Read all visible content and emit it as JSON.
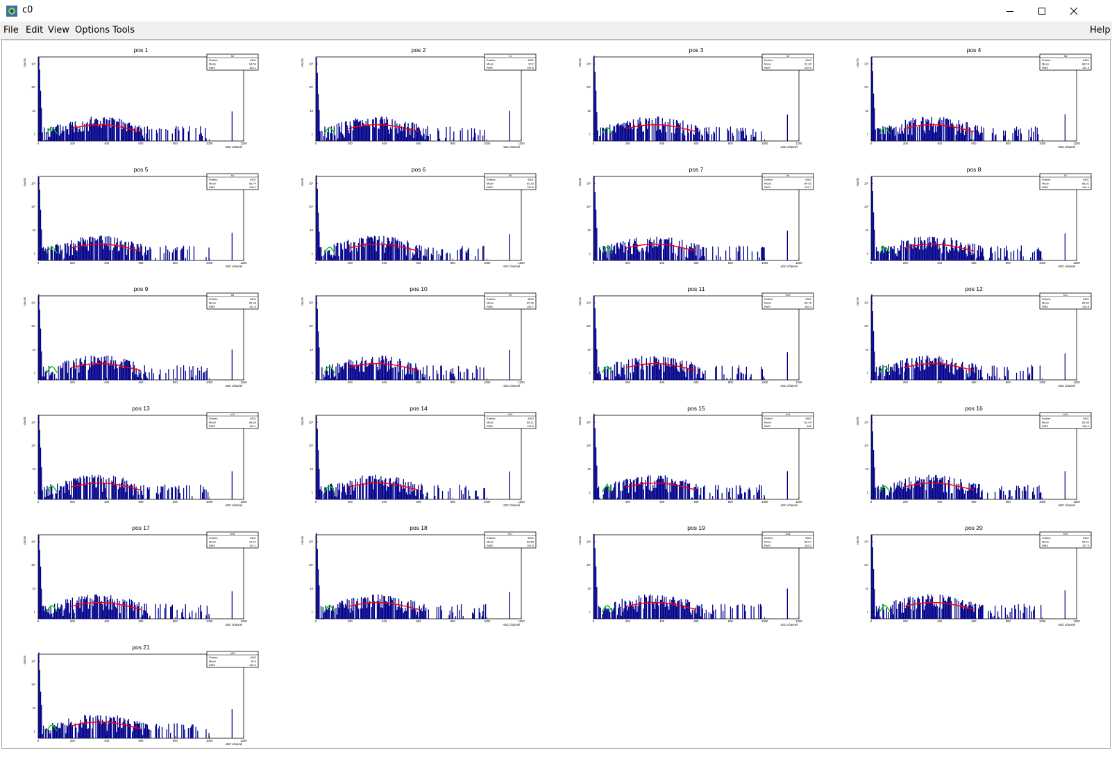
{
  "window": {
    "title": "c0"
  },
  "menubar": {
    "items": [
      {
        "label": "File",
        "name": "file"
      },
      {
        "label": "Edit",
        "name": "edit"
      },
      {
        "label": "View",
        "name": "view"
      },
      {
        "label": "Options",
        "name": "options"
      },
      {
        "label": "Tools",
        "name": "tools"
      }
    ],
    "help": "Help"
  },
  "axis": {
    "xlabel": "ADC channel",
    "ylabel": "counts",
    "xticks": [
      "0",
      "200",
      "400",
      "600",
      "800",
      "1000",
      "1200"
    ],
    "yticks": [
      "1",
      "10",
      "10²",
      "10³"
    ]
  },
  "stats_labels": {
    "entries": "Entries",
    "mean": "Mean",
    "rms": "RMS"
  },
  "colors": {
    "histogram": "#00008b",
    "fit_main": "#ff0000",
    "fit_low": "#00cc00"
  },
  "chart_data": [
    {
      "type": "bar",
      "title": "pos 1",
      "stats": {
        "name": "h0",
        "entries": "4501",
        "mean": "84.59",
        "rms": "153.1"
      }
    },
    {
      "type": "bar",
      "title": "pos 2",
      "stats": {
        "name": "h1",
        "entries": "4501",
        "mean": "90.2",
        "rms": "157.6"
      }
    },
    {
      "type": "bar",
      "title": "pos 3",
      "stats": {
        "name": "h2",
        "entries": "4502",
        "mean": "91.62",
        "rms": "153.5"
      }
    },
    {
      "type": "bar",
      "title": "pos 4",
      "stats": {
        "name": "h3",
        "entries": "4501",
        "mean": "88.19",
        "rms": "151.3"
      }
    },
    {
      "type": "bar",
      "title": "pos 5",
      "stats": {
        "name": "h4",
        "entries": "4501",
        "mean": "86.74",
        "rms": "158.4"
      }
    },
    {
      "type": "bar",
      "title": "pos 6",
      "stats": {
        "name": "h5",
        "entries": "4501",
        "mean": "85.18",
        "rms": "153.8"
      }
    },
    {
      "type": "bar",
      "title": "pos 7",
      "stats": {
        "name": "h6",
        "entries": "4501",
        "mean": "84.63",
        "rms": "157.7"
      }
    },
    {
      "type": "bar",
      "title": "pos 8",
      "stats": {
        "name": "h7",
        "entries": "4501",
        "mean": "88.31",
        "rms": "154.4"
      }
    },
    {
      "type": "bar",
      "title": "pos 9",
      "stats": {
        "name": "h8",
        "entries": "4501",
        "mean": "85.48",
        "rms": "151.9"
      }
    },
    {
      "type": "bar",
      "title": "pos 10",
      "stats": {
        "name": "h9",
        "entries": "4502",
        "mean": "85.26",
        "rms": "150.7"
      }
    },
    {
      "type": "bar",
      "title": "pos 11",
      "stats": {
        "name": "h10",
        "entries": "4501",
        "mean": "89.78",
        "rms": "152.4"
      }
    },
    {
      "type": "bar",
      "title": "pos 12",
      "stats": {
        "name": "h11",
        "entries": "4501",
        "mean": "85.82",
        "rms": "153.4"
      }
    },
    {
      "type": "bar",
      "title": "pos 13",
      "stats": {
        "name": "h12",
        "entries": "4501",
        "mean": "88.69",
        "rms": "146.1"
      }
    },
    {
      "type": "bar",
      "title": "pos 14",
      "stats": {
        "name": "h13",
        "entries": "4502",
        "mean": "88.21",
        "rms": "143.5"
      }
    },
    {
      "type": "bar",
      "title": "pos 15",
      "stats": {
        "name": "h14",
        "entries": "4501",
        "mean": "81.64",
        "rms": "150"
      }
    },
    {
      "type": "bar",
      "title": "pos 16",
      "stats": {
        "name": "h15",
        "entries": "4501",
        "mean": "85.38",
        "rms": "150.2"
      }
    },
    {
      "type": "bar",
      "title": "pos 17",
      "stats": {
        "name": "h16",
        "entries": "4501",
        "mean": "91.67",
        "rms": "151.1"
      }
    },
    {
      "type": "bar",
      "title": "pos 18",
      "stats": {
        "name": "h17",
        "entries": "4501",
        "mean": "88.65",
        "rms": "152.5"
      }
    },
    {
      "type": "bar",
      "title": "pos 19",
      "stats": {
        "name": "h18",
        "entries": "4501",
        "mean": "85.67",
        "rms": "153.2"
      }
    },
    {
      "type": "bar",
      "title": "pos 20",
      "stats": {
        "name": "h19",
        "entries": "4501",
        "mean": "85.21",
        "rms": "157.3"
      }
    },
    {
      "type": "bar",
      "title": "pos 21",
      "stats": {
        "name": "h20",
        "entries": "4502",
        "mean": "90.6",
        "rms": "154.3"
      }
    }
  ]
}
